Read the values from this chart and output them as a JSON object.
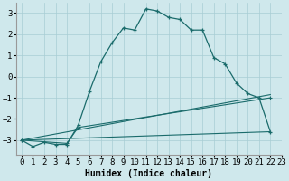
{
  "xlabel": "Humidex (Indice chaleur)",
  "xlim": [
    -0.5,
    23
  ],
  "ylim": [
    -3.7,
    3.5
  ],
  "yticks": [
    -3,
    -2,
    -1,
    0,
    1,
    2,
    3
  ],
  "xticks": [
    0,
    1,
    2,
    3,
    4,
    5,
    6,
    7,
    8,
    9,
    10,
    11,
    12,
    13,
    14,
    15,
    16,
    17,
    18,
    19,
    20,
    21,
    22,
    23
  ],
  "bg_color": "#cfe8ec",
  "grid_color": "#a8cdd4",
  "line_color": "#1a6b6b",
  "curve1_x": [
    0,
    1,
    2,
    3,
    4,
    5,
    6,
    7,
    8,
    9,
    10,
    11,
    12,
    13,
    14,
    15,
    16,
    17,
    18,
    19,
    20,
    21,
    22
  ],
  "curve1_y": [
    -3.0,
    -3.3,
    -3.1,
    -3.2,
    -3.2,
    -2.3,
    -0.7,
    0.7,
    1.6,
    2.3,
    2.2,
    3.2,
    3.1,
    2.8,
    2.7,
    2.2,
    2.2,
    0.9,
    0.6,
    -0.3,
    -0.8,
    -1.0,
    -2.6
  ],
  "line2_x": [
    0,
    22
  ],
  "line2_y": [
    -3.0,
    -2.6
  ],
  "line3_x": [
    0,
    22
  ],
  "line3_y": [
    -3.0,
    -0.85
  ],
  "line4_x": [
    0,
    4,
    5,
    22
  ],
  "line4_y": [
    -3.0,
    -3.15,
    -2.4,
    -1.0
  ],
  "font_family": "monospace",
  "xlabel_fontsize": 7,
  "tick_fontsize": 6.5
}
